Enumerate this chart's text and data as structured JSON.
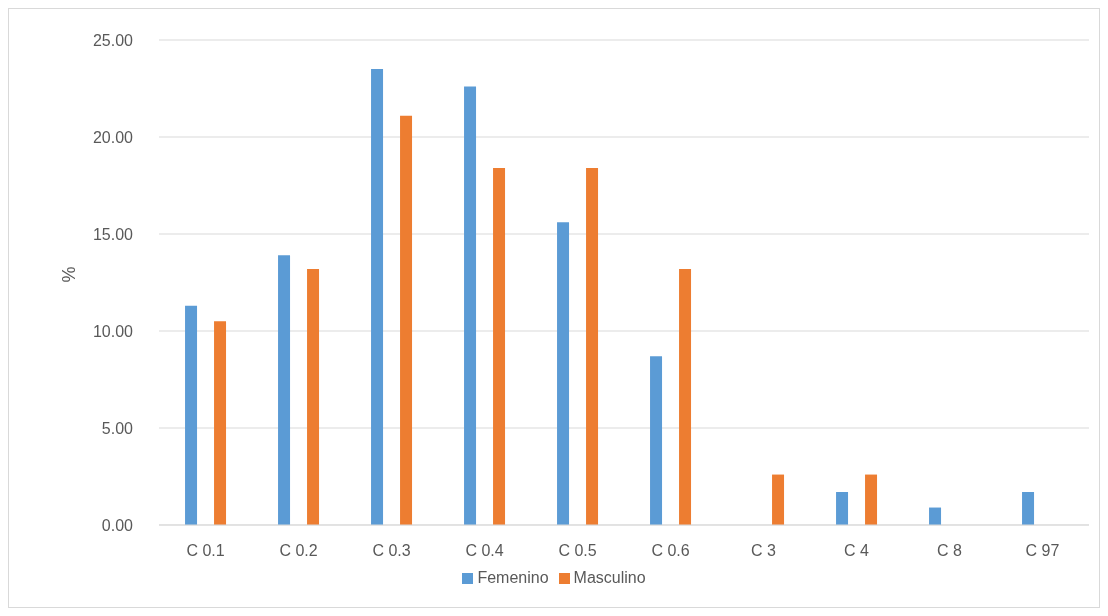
{
  "chart_data": {
    "type": "bar",
    "ylabel": "%",
    "categories": [
      "C 0.1",
      "C 0.2",
      "C 0.3",
      "C 0.4",
      "C 0.5",
      "C 0.6",
      "C 3",
      "C 4",
      "C 8",
      "C 97"
    ],
    "series": [
      {
        "name": "Femenino",
        "color": "#5b9bd5",
        "values": [
          11.3,
          13.9,
          23.5,
          22.6,
          15.6,
          8.7,
          0,
          1.7,
          0.9,
          1.7
        ]
      },
      {
        "name": "Masculino",
        "color": "#ed7d31",
        "values": [
          10.5,
          13.2,
          21.1,
          18.4,
          18.4,
          13.2,
          2.6,
          2.6,
          0,
          0
        ]
      }
    ],
    "ylim": [
      0,
      25
    ],
    "yticks": [
      {
        "value": 0,
        "label": "0.00"
      },
      {
        "value": 5,
        "label": "5.00"
      },
      {
        "value": 10,
        "label": "10.00"
      },
      {
        "value": 15,
        "label": "15.00"
      },
      {
        "value": 20,
        "label": "20.00"
      },
      {
        "value": 25,
        "label": "25.00"
      }
    ],
    "grid": "y",
    "legend": "bottom"
  }
}
